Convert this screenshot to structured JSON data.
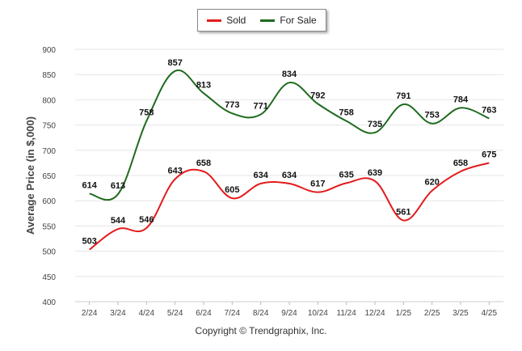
{
  "legend": [
    {
      "label": "Sold",
      "color": "#e31a1c"
    },
    {
      "label": "For Sale",
      "color": "#1f6b1f"
    }
  ],
  "copyright": "Copyright © Trendgraphix, Inc.",
  "chart_data": {
    "type": "line",
    "ylabel": "Average Price (in $,000)",
    "xlabel": "",
    "ylim": [
      400,
      900
    ],
    "yticks": [
      400,
      450,
      500,
      550,
      600,
      650,
      700,
      750,
      800,
      850,
      900
    ],
    "grid": true,
    "legend_position": "top-center",
    "categories": [
      "2/24",
      "3/24",
      "4/24",
      "5/24",
      "6/24",
      "7/24",
      "8/24",
      "9/24",
      "10/24",
      "11/24",
      "12/24",
      "1/25",
      "2/25",
      "3/25",
      "4/25"
    ],
    "series": [
      {
        "name": "Sold",
        "color": "#e31a1c",
        "values": [
          503,
          544,
          546,
          643,
          658,
          605,
          634,
          634,
          617,
          635,
          639,
          561,
          620,
          658,
          675
        ]
      },
      {
        "name": "For Sale",
        "color": "#1f6b1f",
        "values": [
          614,
          613,
          758,
          857,
          813,
          773,
          771,
          834,
          792,
          758,
          735,
          791,
          753,
          784,
          763
        ]
      }
    ]
  }
}
